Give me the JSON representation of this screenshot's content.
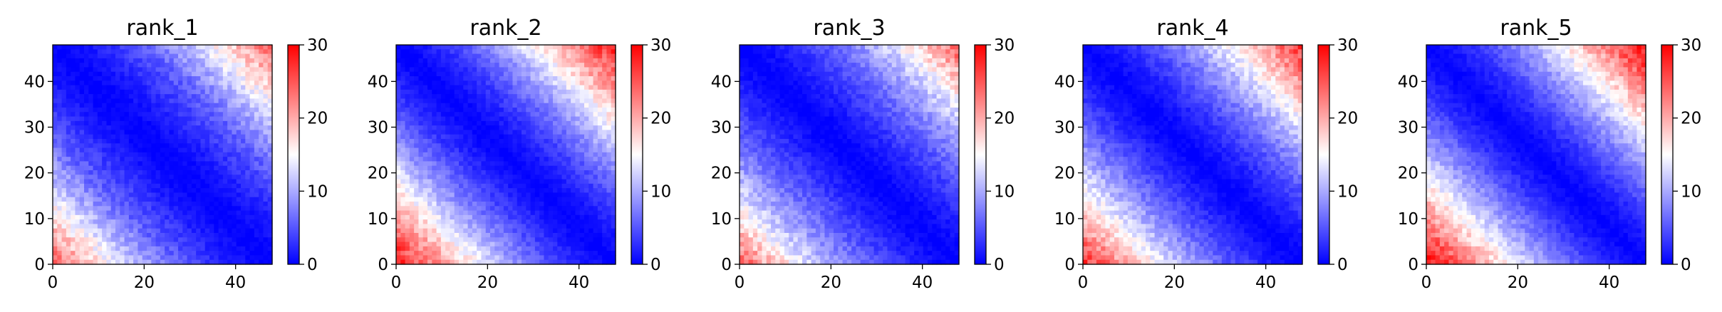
{
  "chart_data": [
    {
      "type": "heatmap",
      "title": "rank_1",
      "matrix_size": 49,
      "colormap": "bwr",
      "value_range": [
        0,
        30
      ],
      "edge_profile": [
        0.0,
        0.9,
        2.2,
        4.0,
        6.0,
        9.0,
        12.5,
        16.0,
        20.0,
        24.0
      ],
      "axes": {
        "xticks": [
          "0",
          "20",
          "40"
        ],
        "yticks": [
          "0",
          "10",
          "20",
          "30",
          "40"
        ],
        "xlim": [
          0,
          48
        ],
        "ylim": [
          48,
          0
        ]
      },
      "colorbar": {
        "ticks": [
          "0",
          "10",
          "20",
          "30"
        ],
        "range": [
          0,
          30
        ]
      }
    },
    {
      "type": "heatmap",
      "title": "rank_2",
      "matrix_size": 49,
      "colormap": "bwr",
      "value_range": [
        0,
        30
      ],
      "edge_profile": [
        0.0,
        1.3,
        3.0,
        5.5,
        8.5,
        12.0,
        16.0,
        20.0,
        24.0,
        28.0
      ],
      "axes": {
        "xticks": [
          "0",
          "20",
          "40"
        ],
        "yticks": [
          "0",
          "10",
          "20",
          "30",
          "40"
        ],
        "xlim": [
          0,
          48
        ],
        "ylim": [
          48,
          0
        ]
      },
      "colorbar": {
        "ticks": [
          "0",
          "10",
          "20",
          "30"
        ],
        "range": [
          0,
          30
        ]
      }
    },
    {
      "type": "heatmap",
      "title": "rank_3",
      "matrix_size": 49,
      "colormap": "bwr",
      "value_range": [
        0,
        30
      ],
      "edge_profile": [
        0.0,
        1.0,
        2.4,
        4.2,
        6.3,
        9.0,
        12.0,
        15.5,
        19.5,
        24.0
      ],
      "axes": {
        "xticks": [
          "0",
          "20",
          "40"
        ],
        "yticks": [
          "0",
          "10",
          "20",
          "30",
          "40"
        ],
        "xlim": [
          0,
          48
        ],
        "ylim": [
          48,
          0
        ]
      },
      "colorbar": {
        "ticks": [
          "0",
          "10",
          "20",
          "30"
        ],
        "range": [
          0,
          30
        ]
      }
    },
    {
      "type": "heatmap",
      "title": "rank_4",
      "matrix_size": 49,
      "colormap": "bwr",
      "value_range": [
        0,
        30
      ],
      "edge_profile": [
        0.0,
        1.2,
        2.8,
        5.0,
        7.8,
        11.0,
        14.5,
        18.5,
        22.5,
        26.5
      ],
      "axes": {
        "xticks": [
          "0",
          "20",
          "40"
        ],
        "yticks": [
          "0",
          "10",
          "20",
          "30",
          "40"
        ],
        "xlim": [
          0,
          48
        ],
        "ylim": [
          48,
          0
        ]
      },
      "colorbar": {
        "ticks": [
          "0",
          "10",
          "20",
          "30"
        ],
        "range": [
          0,
          30
        ]
      }
    },
    {
      "type": "heatmap",
      "title": "rank_5",
      "matrix_size": 49,
      "colormap": "bwr",
      "value_range": [
        0,
        30
      ],
      "edge_profile": [
        0.0,
        1.4,
        3.2,
        6.0,
        9.0,
        12.5,
        16.5,
        20.5,
        25.0,
        29.0
      ],
      "axes": {
        "xticks": [
          "0",
          "20",
          "40"
        ],
        "yticks": [
          "0",
          "10",
          "20",
          "30",
          "40"
        ],
        "xlim": [
          0,
          48
        ],
        "ylim": [
          48,
          0
        ]
      },
      "colorbar": {
        "ticks": [
          "0",
          "10",
          "20",
          "30"
        ],
        "range": [
          0,
          30
        ]
      }
    }
  ]
}
